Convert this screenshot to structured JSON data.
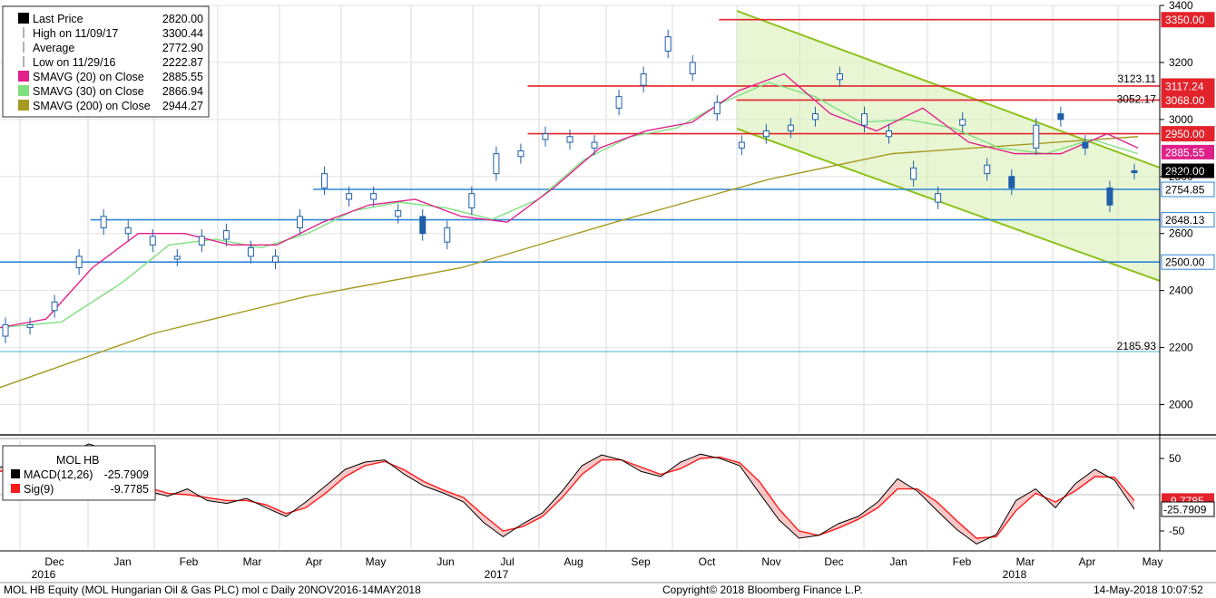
{
  "chart_data": {
    "type": "line",
    "ylim": [
      1900,
      3400
    ],
    "yticks": [
      2000,
      2200,
      2400,
      2600,
      2800,
      3000,
      3200,
      3400
    ],
    "macd_ylim": [
      -75,
      75
    ],
    "macd_yticks": [
      50,
      -50
    ],
    "months": [
      {
        "label": "Dec",
        "year": "2016"
      },
      {
        "label": "Jan",
        "year": ""
      },
      {
        "label": "Feb",
        "year": ""
      },
      {
        "label": "Mar",
        "year": ""
      },
      {
        "label": "Apr",
        "year": ""
      },
      {
        "label": "May",
        "year": ""
      },
      {
        "label": "Jun",
        "year": ""
      },
      {
        "label": "Jul",
        "year": "2017"
      },
      {
        "label": "Aug",
        "year": ""
      },
      {
        "label": "Sep",
        "year": ""
      },
      {
        "label": "Oct",
        "year": ""
      },
      {
        "label": "Nov",
        "year": ""
      },
      {
        "label": "Dec",
        "year": ""
      },
      {
        "label": "Jan",
        "year": ""
      },
      {
        "label": "Feb",
        "year": ""
      },
      {
        "label": "Mar",
        "year": "2018"
      },
      {
        "label": "Apr",
        "year": ""
      },
      {
        "label": "May",
        "year": ""
      }
    ],
    "price": {
      "name": "Last Price",
      "color": "#1f5fa8",
      "points": [
        [
          2240,
          2280
        ],
        [
          2270,
          2280
        ],
        [
          2330,
          2360
        ],
        [
          2480,
          2520
        ],
        [
          2620,
          2660
        ],
        [
          2600,
          2620
        ],
        [
          2560,
          2590
        ],
        [
          2510,
          2520
        ],
        [
          2560,
          2590
        ],
        [
          2580,
          2610
        ],
        [
          2520,
          2550
        ],
        [
          2500,
          2520
        ],
        [
          2620,
          2660
        ],
        [
          2760,
          2810
        ],
        [
          2720,
          2740
        ],
        [
          2720,
          2740
        ],
        [
          2660,
          2680
        ],
        [
          2660,
          2600
        ],
        [
          2570,
          2620
        ],
        [
          2690,
          2740
        ],
        [
          2810,
          2880
        ],
        [
          2870,
          2890
        ],
        [
          2930,
          2950
        ],
        [
          2920,
          2940
        ],
        [
          2900,
          2920
        ],
        [
          3040,
          3080
        ],
        [
          3120,
          3160
        ],
        [
          3240,
          3290
        ],
        [
          3160,
          3200
        ],
        [
          3020,
          3060
        ],
        [
          2900,
          2920
        ],
        [
          2940,
          2960
        ],
        [
          2960,
          2980
        ],
        [
          3000,
          3020
        ],
        [
          3140,
          3160
        ],
        [
          2980,
          3020
        ],
        [
          2940,
          2960
        ],
        [
          2790,
          2830
        ],
        [
          2710,
          2740
        ],
        [
          2980,
          3000
        ],
        [
          2810,
          2840
        ],
        [
          2800,
          2760
        ],
        [
          2900,
          2980
        ],
        [
          3020,
          3000
        ],
        [
          2920,
          2900
        ],
        [
          2760,
          2700
        ],
        [
          2820,
          2815
        ]
      ]
    },
    "sma20": {
      "name": "SMAVG (20) on Close",
      "color": "#e0218a",
      "points": [
        [
          0,
          2270
        ],
        [
          3,
          2300
        ],
        [
          6,
          2480
        ],
        [
          9,
          2600
        ],
        [
          12,
          2600
        ],
        [
          15,
          2560
        ],
        [
          18,
          2560
        ],
        [
          21,
          2640
        ],
        [
          24,
          2700
        ],
        [
          27,
          2720
        ],
        [
          30,
          2660
        ],
        [
          33,
          2640
        ],
        [
          36,
          2760
        ],
        [
          39,
          2900
        ],
        [
          42,
          2960
        ],
        [
          45,
          2990
        ],
        [
          48,
          3100
        ],
        [
          51,
          3160
        ],
        [
          54,
          3020
        ],
        [
          57,
          2960
        ],
        [
          60,
          3040
        ],
        [
          63,
          2920
        ],
        [
          66,
          2880
        ],
        [
          69,
          2880
        ],
        [
          72,
          2950
        ],
        [
          74,
          2900
        ]
      ]
    },
    "sma30": {
      "name": "SMAVG (30) on Close",
      "color": "#7fe07f",
      "points": [
        [
          0,
          2270
        ],
        [
          4,
          2290
        ],
        [
          8,
          2430
        ],
        [
          11,
          2560
        ],
        [
          14,
          2580
        ],
        [
          17,
          2550
        ],
        [
          20,
          2600
        ],
        [
          23,
          2680
        ],
        [
          26,
          2710
        ],
        [
          29,
          2690
        ],
        [
          32,
          2650
        ],
        [
          35,
          2720
        ],
        [
          38,
          2860
        ],
        [
          41,
          2940
        ],
        [
          44,
          2970
        ],
        [
          47,
          3060
        ],
        [
          50,
          3130
        ],
        [
          53,
          3080
        ],
        [
          56,
          2990
        ],
        [
          59,
          3000
        ],
        [
          62,
          2970
        ],
        [
          65,
          2900
        ],
        [
          68,
          2880
        ],
        [
          71,
          2930
        ],
        [
          74,
          2880
        ]
      ]
    },
    "sma200": {
      "name": "SMAVG (200) on Close",
      "color": "#a69a21",
      "points": [
        [
          0,
          2060
        ],
        [
          10,
          2250
        ],
        [
          20,
          2380
        ],
        [
          30,
          2480
        ],
        [
          40,
          2640
        ],
        [
          50,
          2790
        ],
        [
          58,
          2880
        ],
        [
          66,
          2910
        ],
        [
          74,
          2940
        ]
      ]
    },
    "legend": [
      {
        "label": "Last Price",
        "value": "2820.00",
        "color": "#000000",
        "kind": "swatch"
      },
      {
        "label": "High on 11/09/17",
        "value": "3300.44",
        "color": "#666666",
        "kind": "high"
      },
      {
        "label": "Average",
        "value": "2772.90",
        "color": "#666666",
        "kind": "avg"
      },
      {
        "label": "Low on 11/29/16",
        "value": "2222.87",
        "color": "#666666",
        "kind": "low"
      },
      {
        "label": "SMAVG (20) on Close",
        "value": "2885.55",
        "color": "#e0218a",
        "kind": "swatch"
      },
      {
        "label": "SMAVG (30) on Close",
        "value": "2866.94",
        "color": "#7fe07f",
        "kind": "swatch"
      },
      {
        "label": "SMAVG (200) on Close",
        "value": "2944.27",
        "color": "#a69a21",
        "kind": "swatch"
      }
    ],
    "hlines": [
      {
        "value": 3350,
        "tag": "3350.00",
        "color": "#e3232b",
        "kind": "red",
        "start": 0.62
      },
      {
        "value": 3117.24,
        "tag": "3117.24",
        "color": "#e3232b",
        "kind": "red",
        "start": 0.455
      },
      {
        "value": 3068,
        "tag": "3068.00",
        "color": "#e3232b",
        "kind": "red",
        "start": 0.635
      },
      {
        "value": 2950,
        "tag": "2950.00",
        "color": "#e3232b",
        "kind": "red",
        "start": 0.455
      },
      {
        "value": 2754.85,
        "tag": "2754.85",
        "color": "#2e86d8",
        "kind": "blue",
        "start": 0.27
      },
      {
        "value": 2648.13,
        "tag": "2648.13",
        "color": "#2e86d8",
        "kind": "blue",
        "start": 0.078
      },
      {
        "value": 2500,
        "tag": "2500.00",
        "color": "#2e86d8",
        "kind": "blue",
        "start": 0.0
      },
      {
        "value": 2185.93,
        "tag": "",
        "color": "#4fb3d9",
        "kind": "thin",
        "start": 0.0
      }
    ],
    "level_labels": [
      {
        "value": 3123.11,
        "label": "3123.11"
      },
      {
        "value": 3052.17,
        "label": "3052.17"
      },
      {
        "value": 2185.93,
        "label": "2185.93"
      }
    ],
    "value_tags": [
      {
        "value": 2885.55,
        "label": "2885.55",
        "color": "#e0218a",
        "text_color": "#ffffff"
      },
      {
        "value": 2820.0,
        "label": "2820.00",
        "color": "#000000",
        "text_color": "#ffffff"
      }
    ],
    "macd": {
      "title": "MOL HB",
      "macd_label": "MACD(12,26)",
      "macd_value": "-25.7909",
      "sig_label": "Sig(9)",
      "sig_value": "-9.7785",
      "macd_color": "#000000",
      "sig_color": "#ff1a1a",
      "tag_sig": "-9.7785",
      "tag_macd": "-25.7909",
      "macd_points": [
        [
          0,
          38
        ],
        [
          3,
          45
        ],
        [
          6,
          52
        ],
        [
          9,
          70
        ],
        [
          11,
          62
        ],
        [
          13,
          22
        ],
        [
          15,
          5
        ],
        [
          17,
          -2
        ],
        [
          19,
          8
        ],
        [
          21,
          -8
        ],
        [
          23,
          -12
        ],
        [
          25,
          -5
        ],
        [
          27,
          -18
        ],
        [
          29,
          -30
        ],
        [
          31,
          -10
        ],
        [
          33,
          12
        ],
        [
          35,
          35
        ],
        [
          37,
          45
        ],
        [
          39,
          48
        ],
        [
          41,
          28
        ],
        [
          43,
          12
        ],
        [
          45,
          2
        ],
        [
          47,
          -10
        ],
        [
          49,
          -38
        ],
        [
          51,
          -58
        ],
        [
          53,
          -40
        ],
        [
          55,
          -25
        ],
        [
          57,
          5
        ],
        [
          59,
          40
        ],
        [
          61,
          55
        ],
        [
          63,
          48
        ],
        [
          65,
          32
        ],
        [
          67,
          25
        ],
        [
          69,
          45
        ],
        [
          71,
          56
        ],
        [
          73,
          50
        ],
        [
          75,
          40
        ],
        [
          77,
          2
        ],
        [
          79,
          -35
        ],
        [
          81,
          -60
        ],
        [
          83,
          -56
        ],
        [
          85,
          -40
        ],
        [
          87,
          -30
        ],
        [
          89,
          -10
        ],
        [
          91,
          22
        ],
        [
          93,
          5
        ],
        [
          95,
          -22
        ],
        [
          97,
          -48
        ],
        [
          99,
          -68
        ],
        [
          101,
          -55
        ],
        [
          103,
          -8
        ],
        [
          105,
          8
        ],
        [
          107,
          -18
        ],
        [
          109,
          15
        ],
        [
          111,
          35
        ],
        [
          113,
          20
        ],
        [
          115,
          -20
        ]
      ],
      "sig_points": [
        [
          0,
          32
        ],
        [
          3,
          40
        ],
        [
          6,
          50
        ],
        [
          9,
          60
        ],
        [
          11,
          60
        ],
        [
          13,
          32
        ],
        [
          15,
          10
        ],
        [
          17,
          2
        ],
        [
          19,
          0
        ],
        [
          21,
          -4
        ],
        [
          23,
          -8
        ],
        [
          25,
          -8
        ],
        [
          27,
          -14
        ],
        [
          29,
          -26
        ],
        [
          31,
          -18
        ],
        [
          33,
          2
        ],
        [
          35,
          25
        ],
        [
          37,
          40
        ],
        [
          39,
          46
        ],
        [
          41,
          34
        ],
        [
          43,
          18
        ],
        [
          45,
          6
        ],
        [
          47,
          -4
        ],
        [
          49,
          -28
        ],
        [
          51,
          -50
        ],
        [
          53,
          -44
        ],
        [
          55,
          -30
        ],
        [
          57,
          -4
        ],
        [
          59,
          28
        ],
        [
          61,
          48
        ],
        [
          63,
          48
        ],
        [
          65,
          38
        ],
        [
          67,
          28
        ],
        [
          69,
          36
        ],
        [
          71,
          50
        ],
        [
          73,
          52
        ],
        [
          75,
          44
        ],
        [
          77,
          18
        ],
        [
          79,
          -20
        ],
        [
          81,
          -50
        ],
        [
          83,
          -56
        ],
        [
          85,
          -46
        ],
        [
          87,
          -34
        ],
        [
          89,
          -18
        ],
        [
          91,
          8
        ],
        [
          93,
          8
        ],
        [
          95,
          -10
        ],
        [
          97,
          -36
        ],
        [
          99,
          -60
        ],
        [
          101,
          -58
        ],
        [
          103,
          -22
        ],
        [
          105,
          2
        ],
        [
          107,
          -10
        ],
        [
          109,
          5
        ],
        [
          111,
          25
        ],
        [
          113,
          24
        ],
        [
          115,
          -8
        ]
      ]
    }
  },
  "footer": {
    "left": "MOL HB Equity (MOL Hungarian Oil & Gas PLC) mol c  Daily 20NOV2016-14MAY2018",
    "center": "Copyright© 2018 Bloomberg Finance L.P.",
    "right": "14-May-2018 10:07:52"
  }
}
